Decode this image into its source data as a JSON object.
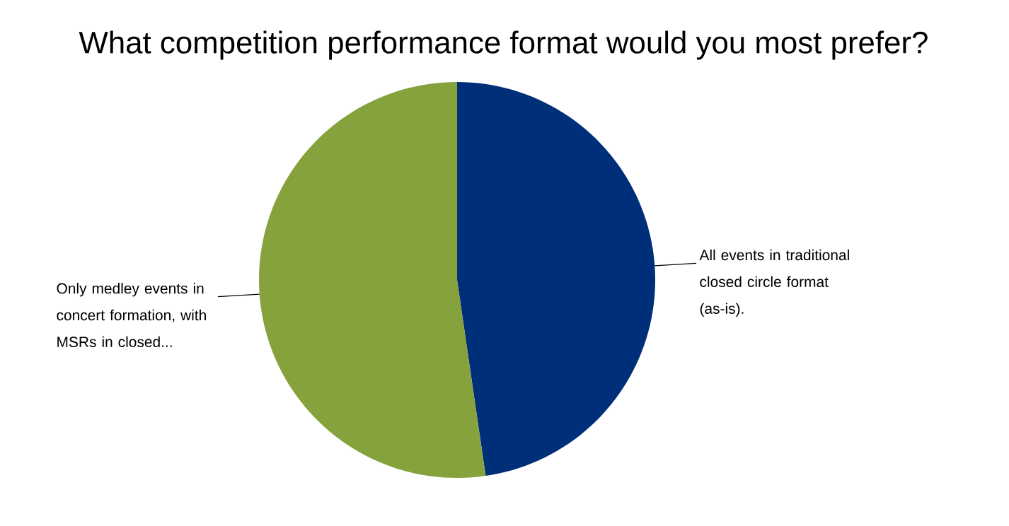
{
  "chart_data": {
    "type": "pie",
    "title": "What competition performance format would you most prefer?",
    "categories": [
      "All events in traditional closed circle format (as-is).",
      "Only medley events in concert formation, with MSRs in closed..."
    ],
    "values": [
      47.7,
      52.3
    ],
    "colors": [
      "#002f7a",
      "#86a23c"
    ],
    "legend": false
  }
}
